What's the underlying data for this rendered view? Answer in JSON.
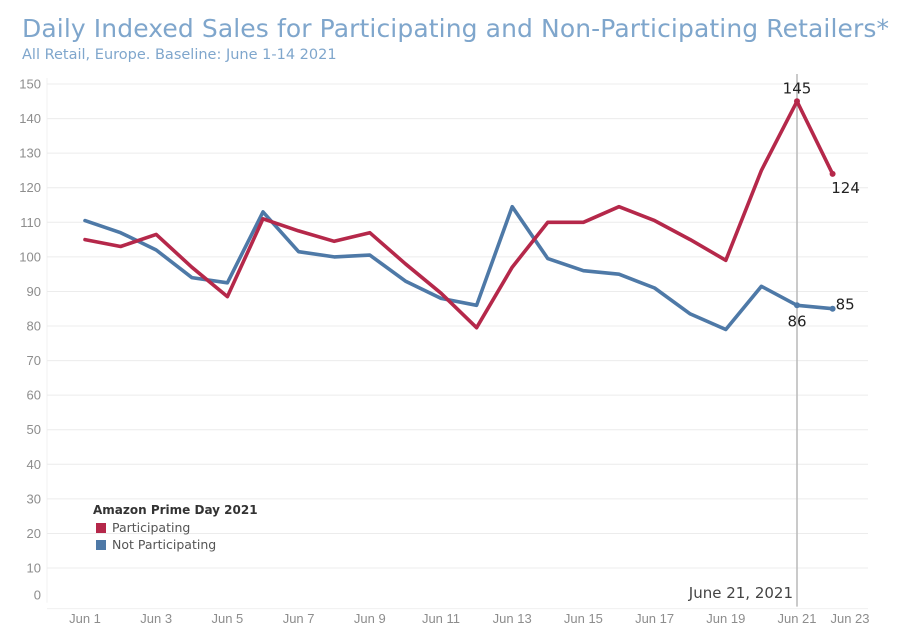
{
  "header": {
    "title": "Daily Indexed Sales for Participating and Non-Participating Retailers*",
    "subtitle": "All Retail, Europe. Baseline: June 1-14 2021"
  },
  "legend": {
    "title": "Amazon Prime Day 2021",
    "items": [
      {
        "label": "Participating",
        "color": "#b5284a"
      },
      {
        "label": "Not Participating",
        "color": "#4e79a7"
      }
    ]
  },
  "chart_data": {
    "type": "line",
    "title": "Daily Indexed Sales for Participating and Non-Participating Retailers*",
    "subtitle": "All Retail, Europe. Baseline: June 1-14 2021",
    "xlabel": "",
    "ylabel": "",
    "ylim": [
      0,
      150
    ],
    "yticks": [
      0,
      10,
      20,
      30,
      40,
      50,
      60,
      70,
      80,
      90,
      100,
      110,
      120,
      130,
      140,
      150
    ],
    "x": [
      "Jun 1",
      "Jun 2",
      "Jun 3",
      "Jun 4",
      "Jun 5",
      "Jun 6",
      "Jun 7",
      "Jun 8",
      "Jun 9",
      "Jun 10",
      "Jun 11",
      "Jun 12",
      "Jun 13",
      "Jun 14",
      "Jun 15",
      "Jun 16",
      "Jun 17",
      "Jun 18",
      "Jun 19",
      "Jun 20",
      "Jun 21",
      "Jun 22"
    ],
    "xticks": [
      "Jun 1",
      "Jun 3",
      "Jun 5",
      "Jun 7",
      "Jun 9",
      "Jun 11",
      "Jun 13",
      "Jun 15",
      "Jun 17",
      "Jun 19",
      "Jun 21",
      "Jun 23"
    ],
    "grid": true,
    "legend_position": "bottom-left",
    "series": [
      {
        "name": "Participating",
        "color": "#b5284a",
        "values": [
          105,
          103,
          106.5,
          97,
          88.5,
          111,
          107.5,
          104.5,
          107,
          98,
          89.5,
          79.5,
          97,
          110,
          110,
          114.5,
          110.5,
          105,
          99,
          125,
          145,
          124
        ]
      },
      {
        "name": "Not Participating",
        "color": "#4e79a7",
        "values": [
          110.5,
          107,
          102,
          94,
          92.5,
          113,
          101.5,
          100,
          100.5,
          93,
          88,
          86,
          114.5,
          99.5,
          96,
          95,
          91,
          83.5,
          79,
          91.5,
          86,
          85
        ]
      }
    ],
    "annotations": [
      {
        "series": 0,
        "index": 20,
        "text": "145",
        "pos": "above"
      },
      {
        "series": 0,
        "index": 21,
        "text": "124",
        "pos": "below-right"
      },
      {
        "series": 1,
        "index": 20,
        "text": "86",
        "pos": "below"
      },
      {
        "series": 1,
        "index": 21,
        "text": "85",
        "pos": "right"
      }
    ],
    "reference_line": {
      "x_index": 20,
      "label": "June 21, 2021"
    }
  }
}
